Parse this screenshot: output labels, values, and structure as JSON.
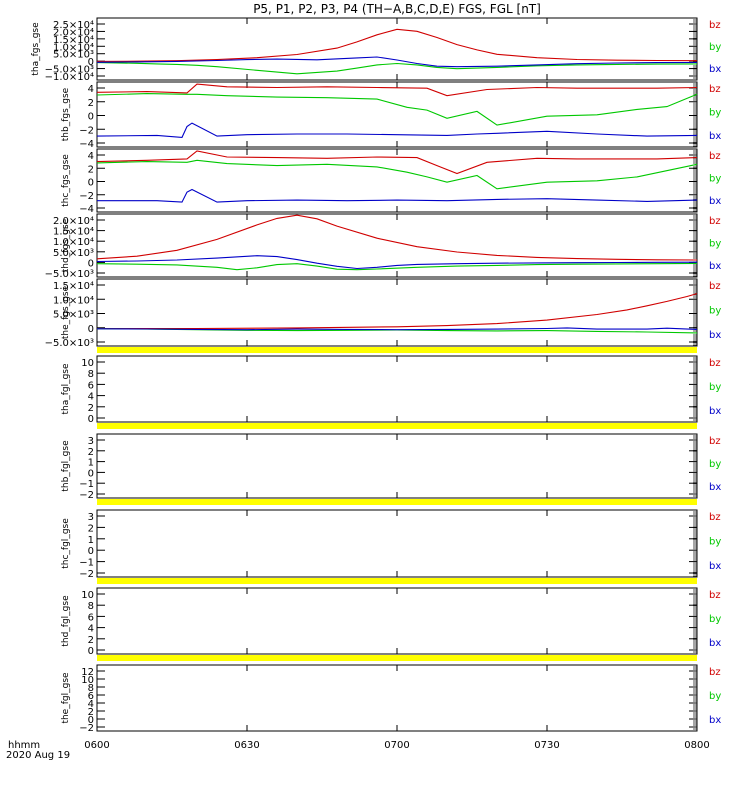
{
  "chart_data": {
    "title": "P5, P1, P2, P3, P4 (TH−A,B,C,D,E) FGS, FGL [nT]",
    "type": "line",
    "x_range": [
      "0600",
      "0800"
    ],
    "x_ticks": [
      "0600",
      "0630",
      "0700",
      "0730",
      "0800"
    ],
    "x_label_lines": [
      "hhmm",
      "2020 Aug 19"
    ],
    "series_colors": {
      "bz": "#d00000",
      "by": "#00c800",
      "bx": "#0000c8"
    },
    "legend": [
      "bz",
      "by",
      "bx"
    ],
    "panels": [
      {
        "ylabel": "tha_fgs_gse",
        "yticks": [
          "2.5×10⁴",
          "2.0×10⁴",
          "1.5×10⁴",
          "1.0×10⁴",
          "5.0×10³",
          "0",
          "−5.0×10³",
          "−1.0×10⁴"
        ],
        "ylim": [
          -10000,
          25000
        ],
        "series": [
          {
            "name": "bz",
            "x": [
              0,
              8,
              16,
              24,
              32,
              40,
              48,
              52,
              56,
              60,
              64,
              68,
              72,
              76,
              80,
              88,
              96,
              104,
              112,
              120
            ],
            "values": [
              500,
              600,
              900,
              1500,
              2600,
              4400,
              8000,
              11500,
              15500,
              18600,
              17500,
              14000,
              10000,
              7000,
              4500,
              2600,
              1600,
              1200,
              1000,
              900
            ]
          },
          {
            "name": "by",
            "x": [
              0,
              8,
              12,
              16,
              20,
              24,
              32,
              40,
              48,
              52,
              56,
              60,
              64,
              68,
              72,
              80,
              88,
              96,
              104,
              112,
              120
            ],
            "values": [
              -200,
              -600,
              -900,
              -1200,
              -1700,
              -2500,
              -4500,
              -6500,
              -5000,
              -3300,
              -1500,
              -700,
              -1500,
              -2900,
              -3600,
              -2900,
              -2000,
              -1500,
              -1200,
              -1000,
              -900
            ]
          },
          {
            "name": "bx",
            "x": [
              0,
              8,
              16,
              24,
              30,
              36,
              44,
              52,
              56,
              60,
              64,
              68,
              72,
              80,
              88,
              96,
              104,
              112,
              120
            ],
            "values": [
              0,
              200,
              500,
              1000,
              1500,
              1800,
              1400,
              2500,
              3000,
              1300,
              -700,
              -2200,
              -2500,
              -2200,
              -1500,
              -800,
              -400,
              -200,
              -100
            ]
          }
        ]
      },
      {
        "ylabel": "thb_fgs_gse",
        "yticks": [
          "4",
          "2",
          "0",
          "−2",
          "−4"
        ],
        "ylim": [
          -5,
          4.5
        ],
        "series": [
          {
            "name": "bz",
            "x": [
              0,
              10,
              18,
              20,
              26,
              36,
              46,
              56,
              66,
              70,
              78,
              88,
              96,
              104,
              112,
              120
            ],
            "values": [
              3,
              3.1,
              2.9,
              4.2,
              3.8,
              3.7,
              3.8,
              3.7,
              3.6,
              2.5,
              3.4,
              3.7,
              3.6,
              3.6,
              3.6,
              3.7
            ]
          },
          {
            "name": "by",
            "x": [
              0,
              10,
              18,
              20,
              26,
              36,
              46,
              56,
              62,
              66,
              70,
              76,
              80,
              90,
              100,
              108,
              114,
              120
            ],
            "values": [
              2.6,
              2.8,
              2.7,
              2.7,
              2.5,
              2.3,
              2.2,
              2,
              0.8,
              0.4,
              -0.8,
              0.2,
              -1.8,
              -0.5,
              -0.3,
              0.5,
              0.9,
              2.7
            ]
          },
          {
            "name": "bx",
            "x": [
              0,
              12,
              17,
              18,
              19,
              24,
              30,
              40,
              50,
              60,
              70,
              76,
              80,
              90,
              100,
              110,
              120
            ],
            "values": [
              -3.4,
              -3.3,
              -3.6,
              -2,
              -1.5,
              -3.4,
              -3.2,
              -3.1,
              -3.1,
              -3.2,
              -3.3,
              -3.1,
              -3,
              -2.7,
              -3.1,
              -3.4,
              -3.3
            ]
          }
        ]
      },
      {
        "ylabel": "thc_fgs_gse",
        "yticks": [
          "4",
          "2",
          "0",
          "−2",
          "−4"
        ],
        "ylim": [
          -5,
          4.5
        ],
        "series": [
          {
            "name": "bz",
            "x": [
              0,
              10,
              18,
              20,
              26,
              36,
              46,
              56,
              64,
              68,
              72,
              78,
              88,
              96,
              104,
              112,
              120
            ],
            "values": [
              2.6,
              2.8,
              3,
              4.2,
              3.3,
              3.2,
              3.1,
              3.3,
              3.2,
              2,
              0.8,
              2.5,
              3.1,
              3,
              3,
              3,
              3.2
            ]
          },
          {
            "name": "by",
            "x": [
              0,
              10,
              18,
              20,
              26,
              36,
              46,
              56,
              62,
              66,
              70,
              76,
              80,
              90,
              100,
              108,
              120
            ],
            "values": [
              2.4,
              2.6,
              2.5,
              2.8,
              2.3,
              2,
              2.2,
              1.8,
              1,
              0.3,
              -0.5,
              0.5,
              -1.5,
              -0.5,
              -0.3,
              0.3,
              2.2
            ]
          },
          {
            "name": "bx",
            "x": [
              0,
              12,
              17,
              18,
              19,
              24,
              30,
              40,
              50,
              60,
              70,
              80,
              90,
              100,
              110,
              120
            ],
            "values": [
              -3.3,
              -3.3,
              -3.5,
              -2,
              -1.6,
              -3.5,
              -3.3,
              -3.2,
              -3.3,
              -3.2,
              -3.3,
              -3.1,
              -3,
              -3.2,
              -3.4,
              -3.2
            ]
          }
        ]
      },
      {
        "ylabel": "thd_fgs_gse",
        "yticks": [
          "2.0×10⁴",
          "1.5×10⁴",
          "1.0×10⁴",
          "5.0×10³",
          "0",
          "−5.0×10³"
        ],
        "ylim": [
          -6000,
          20000
        ],
        "series": [
          {
            "name": "bz",
            "x": [
              0,
              8,
              16,
              24,
              32,
              36,
              40,
              44,
              48,
              56,
              64,
              72,
              80,
              88,
              96,
              104,
              112,
              120
            ],
            "values": [
              1500,
              2600,
              5000,
              9500,
              15500,
              18200,
              19500,
              18000,
              15000,
              10000,
              6500,
              4300,
              2900,
              2100,
              1600,
              1300,
              1100,
              1000
            ]
          },
          {
            "name": "by",
            "x": [
              0,
              8,
              16,
              24,
              28,
              32,
              36,
              40,
              44,
              48,
              52,
              56,
              64,
              72,
              80,
              88,
              96,
              104,
              112,
              120
            ],
            "values": [
              -500,
              -700,
              -1000,
              -2000,
              -3000,
              -2200,
              -900,
              -500,
              -1500,
              -2800,
              -3000,
              -2700,
              -2000,
              -1500,
              -1200,
              -900,
              -700,
              -600,
              -500,
              -400
            ]
          },
          {
            "name": "bx",
            "x": [
              0,
              8,
              16,
              24,
              32,
              36,
              40,
              44,
              48,
              52,
              56,
              60,
              64,
              72,
              80,
              88,
              96,
              104,
              112,
              120
            ],
            "values": [
              400,
              600,
              1000,
              1800,
              2800,
              2400,
              1200,
              -300,
              -1600,
              -2500,
              -2000,
              -1200,
              -800,
              -500,
              -300,
              -200,
              -100,
              0,
              50,
              100
            ]
          }
        ]
      },
      {
        "ylabel": "the_fgs_gse",
        "yticks": [
          "1.5×10⁴",
          "1.0×10⁴",
          "5.0×10³",
          "0",
          "−5.0×10³"
        ],
        "ylim": [
          -6000,
          17000
        ],
        "series": [
          {
            "name": "bz",
            "x": [
              0,
              20,
              40,
              60,
              70,
              80,
              90,
              100,
              106,
              110,
              114,
              118,
              120
            ],
            "values": [
              0,
              0,
              200,
              600,
              1000,
              1700,
              2900,
              4800,
              6400,
              7800,
              9300,
              11000,
              12000
            ]
          },
          {
            "name": "by",
            "x": [
              0,
              10,
              20,
              30,
              40,
              50,
              60,
              70,
              80,
              90,
              100,
              110,
              120
            ],
            "values": [
              -100,
              -200,
              -400,
              -600,
              -700,
              -600,
              -500,
              -700,
              -800,
              -700,
              -1000,
              -1200,
              -1500
            ]
          },
          {
            "name": "bx",
            "x": [
              0,
              10,
              20,
              30,
              40,
              50,
              60,
              70,
              80,
              90,
              94,
              100,
              110,
              114,
              120
            ],
            "values": [
              -100,
              -150,
              -300,
              -400,
              -200,
              -300,
              -400,
              -300,
              -200,
              0,
              200,
              -200,
              -200,
              100,
              -300
            ]
          }
        ]
      },
      {
        "ylabel": "tha_fgl_gse",
        "yticks": [
          "10",
          "8",
          "6",
          "4",
          "2",
          "0"
        ],
        "ylim": [
          -1,
          10.8
        ],
        "series": []
      },
      {
        "ylabel": "thb_fgl_gse",
        "yticks": [
          "3",
          "2",
          "1",
          "0",
          "−1",
          "−2"
        ],
        "ylim": [
          -2.5,
          3.3
        ],
        "series": []
      },
      {
        "ylabel": "thc_fgl_gse",
        "yticks": [
          "3",
          "2",
          "1",
          "0",
          "−1",
          "−2"
        ],
        "ylim": [
          -2.5,
          3.3
        ],
        "series": []
      },
      {
        "ylabel": "thd_fgl_gse",
        "yticks": [
          "10",
          "8",
          "6",
          "4",
          "2",
          "0"
        ],
        "ylim": [
          -1,
          10.8
        ],
        "series": []
      },
      {
        "ylabel": "the_fgl_gse",
        "yticks": [
          "12",
          "10",
          "8",
          "6",
          "4",
          "2",
          "0",
          "−2"
        ],
        "ylim": [
          -2.5,
          13
        ],
        "series": []
      }
    ]
  }
}
